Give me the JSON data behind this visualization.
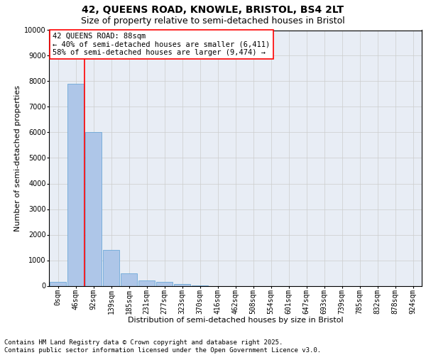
{
  "title_line1": "42, QUEENS ROAD, KNOWLE, BRISTOL, BS4 2LT",
  "title_line2": "Size of property relative to semi-detached houses in Bristol",
  "xlabel": "Distribution of semi-detached houses by size in Bristol",
  "ylabel": "Number of semi-detached properties",
  "bar_color": "#aec6e8",
  "bar_edge_color": "#5a9fd4",
  "vline_color": "red",
  "vline_x_idx": 2,
  "annotation_text": "42 QUEENS ROAD: 88sqm\n← 40% of semi-detached houses are smaller (6,411)\n58% of semi-detached houses are larger (9,474) →",
  "annotation_box_color": "white",
  "annotation_box_edge_color": "red",
  "categories": [
    "0sqm",
    "46sqm",
    "92sqm",
    "139sqm",
    "185sqm",
    "231sqm",
    "277sqm",
    "323sqm",
    "370sqm",
    "416sqm",
    "462sqm",
    "508sqm",
    "554sqm",
    "601sqm",
    "647sqm",
    "693sqm",
    "739sqm",
    "785sqm",
    "832sqm",
    "878sqm",
    "924sqm"
  ],
  "values": [
    150,
    7900,
    6000,
    1400,
    500,
    220,
    140,
    60,
    10,
    0,
    0,
    0,
    0,
    0,
    0,
    0,
    0,
    0,
    0,
    0,
    0
  ],
  "ylim": [
    0,
    10000
  ],
  "yticks": [
    0,
    1000,
    2000,
    3000,
    4000,
    5000,
    6000,
    7000,
    8000,
    9000,
    10000
  ],
  "grid_color": "#cccccc",
  "background_color": "#e8edf5",
  "footer_line1": "Contains HM Land Registry data © Crown copyright and database right 2025.",
  "footer_line2": "Contains public sector information licensed under the Open Government Licence v3.0.",
  "title_fontsize": 10,
  "subtitle_fontsize": 9,
  "axis_label_fontsize": 8,
  "tick_fontsize": 7,
  "annotation_fontsize": 7.5,
  "footer_fontsize": 6.5
}
